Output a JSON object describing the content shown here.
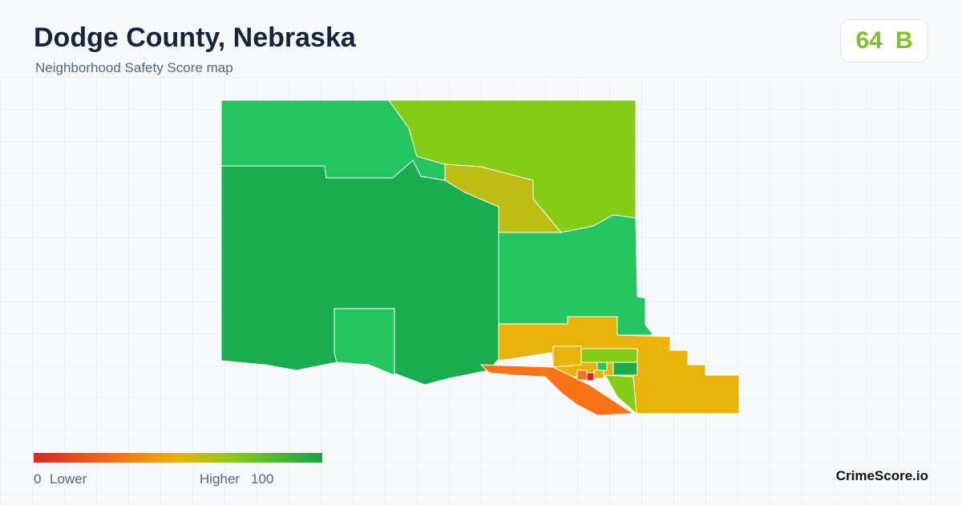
{
  "header": {
    "title": "Dodge County, Nebraska",
    "subtitle": "Neighborhood Safety Score map"
  },
  "score": {
    "value": 64,
    "grade": "B"
  },
  "legend": {
    "min": 0,
    "min_label": "Lower",
    "max_label": "Higher",
    "max": 100
  },
  "brand": "CrimeScore.io"
}
